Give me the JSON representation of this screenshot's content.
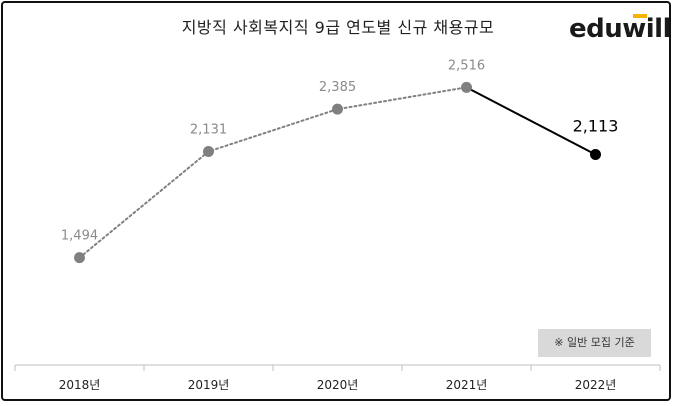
{
  "title": "지방직 사회복지직 9급 연도별 신규 채용규모",
  "logo": "eduwill",
  "note": "※ 일반 모집 기준",
  "colors": {
    "dotted_series": "#808080",
    "solid_segment": "#000000",
    "note_bg": "#d9d9d9",
    "logo_accent": "#f5b400"
  },
  "chart_data": {
    "type": "line",
    "title": "지방직 사회복지직 9급 연도별 신규 채용규모",
    "categories": [
      "2018년",
      "2019년",
      "2020년",
      "2021년",
      "2022년"
    ],
    "values": [
      1494,
      2131,
      2385,
      2516,
      2113
    ],
    "value_labels": [
      "1,494",
      "2,131",
      "2,385",
      "2,516",
      "2,113"
    ],
    "ylim": [
      1000,
      2800
    ],
    "grid": false,
    "line_style": "dotted through 2021년, solid from 2021년 to 2022년"
  }
}
